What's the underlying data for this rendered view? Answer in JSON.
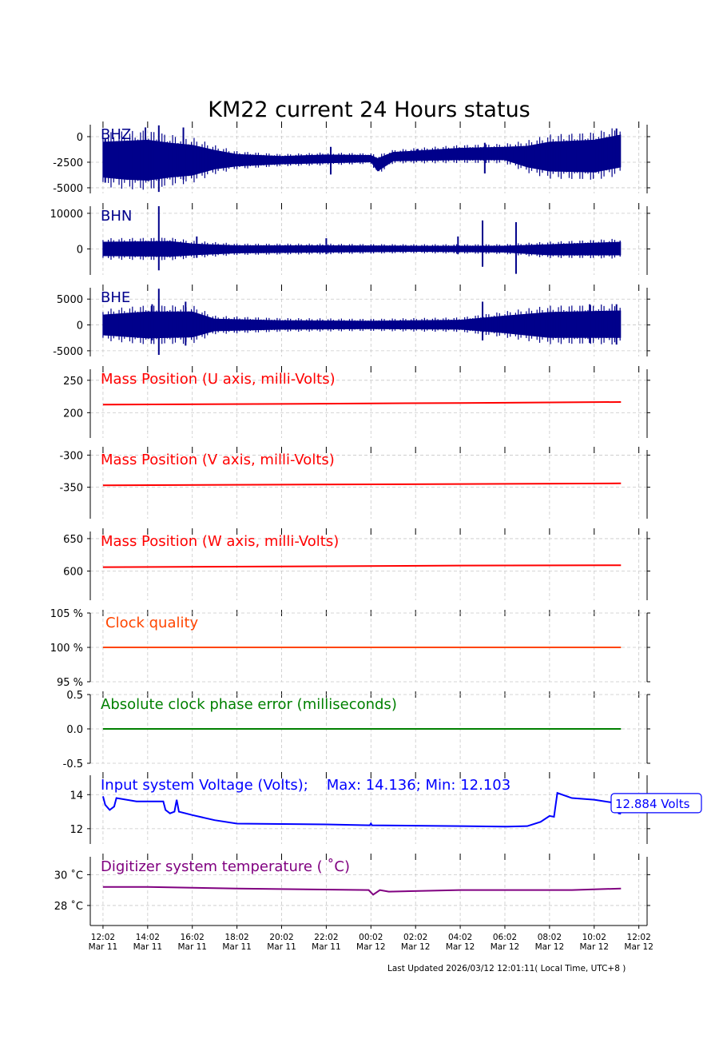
{
  "chart_data": {
    "type": "line",
    "title": "KM22 current 24 Hours status",
    "footer": "Last Updated 2026/03/12 12:01:11( Local Time, UTC+8 )",
    "x_unit": "hours since 12:02 Mar 11",
    "xlim": [
      -0.57,
      24.37
    ],
    "x_ticks": [
      {
        "h": 0,
        "t1": "12:02",
        "t2": "Mar 11"
      },
      {
        "h": 2,
        "t1": "14:02",
        "t2": "Mar 11"
      },
      {
        "h": 4,
        "t1": "16:02",
        "t2": "Mar 11"
      },
      {
        "h": 6,
        "t1": "18:02",
        "t2": "Mar 11"
      },
      {
        "h": 8,
        "t1": "20:02",
        "t2": "Mar 11"
      },
      {
        "h": 10,
        "t1": "22:02",
        "t2": "Mar 11"
      },
      {
        "h": 12,
        "t1": "00:02",
        "t2": "Mar 12"
      },
      {
        "h": 14,
        "t1": "02:02",
        "t2": "Mar 12"
      },
      {
        "h": 16,
        "t1": "04:02",
        "t2": "Mar 12"
      },
      {
        "h": 18,
        "t1": "06:02",
        "t2": "Mar 12"
      },
      {
        "h": 20,
        "t1": "08:02",
        "t2": "Mar 12"
      },
      {
        "h": 22,
        "t1": "10:02",
        "t2": "Mar 12"
      },
      {
        "h": 24,
        "t1": "12:02",
        "t2": "Mar 12"
      }
    ],
    "grid": true,
    "panels": [
      {
        "name": "BHZ",
        "label": "BHZ",
        "color": "#00008b",
        "kind": "envelope",
        "ylim": [
          -5550,
          1170
        ],
        "yticks": [
          {
            "v": 0,
            "t": "0"
          },
          {
            "v": -2500,
            "t": "-2500"
          },
          {
            "v": -5000,
            "t": "-5000"
          }
        ],
        "envelope": [
          [
            0,
            -4000,
            -500
          ],
          [
            1,
            -4200,
            -400
          ],
          [
            2,
            -4300,
            -300
          ],
          [
            3,
            -4000,
            -600
          ],
          [
            4,
            -3800,
            -800
          ],
          [
            5,
            -3200,
            -1300
          ],
          [
            6,
            -2900,
            -1700
          ],
          [
            8,
            -2700,
            -1900
          ],
          [
            10,
            -2600,
            -1750
          ],
          [
            12,
            -2500,
            -1800
          ],
          [
            12.3,
            -3400,
            -2100
          ],
          [
            13,
            -2400,
            -1500
          ],
          [
            16,
            -2300,
            -1100
          ],
          [
            18,
            -2300,
            -1000
          ],
          [
            19,
            -3000,
            -900
          ],
          [
            20,
            -3400,
            -500
          ],
          [
            22,
            -3500,
            -300
          ],
          [
            23.2,
            -3000,
            200
          ]
        ],
        "spikes": [
          [
            0.1,
            -4500,
            -200
          ],
          [
            2.5,
            -5400,
            1100
          ],
          [
            1.9,
            -4000,
            900
          ],
          [
            3.6,
            -4200,
            900
          ],
          [
            10.2,
            -3700,
            -1000
          ],
          [
            14.1,
            -2300,
            -1200
          ],
          [
            17.1,
            -3600,
            -600
          ],
          [
            23,
            -3000,
            800
          ]
        ]
      },
      {
        "name": "BHN",
        "label": "BHN",
        "color": "#00008b",
        "kind": "envelope",
        "ylim": [
          -7300,
          12000
        ],
        "yticks": [
          {
            "v": 10000,
            "t": "10000"
          },
          {
            "v": 0,
            "t": "0"
          }
        ],
        "envelope": [
          [
            0,
            -2000,
            2000
          ],
          [
            3,
            -2200,
            2200
          ],
          [
            4,
            -1800,
            1500
          ],
          [
            6,
            -1200,
            1000
          ],
          [
            10,
            -1000,
            1000
          ],
          [
            14,
            -800,
            900
          ],
          [
            18,
            -1000,
            900
          ],
          [
            20,
            -1800,
            1300
          ],
          [
            23.2,
            -1800,
            2000
          ]
        ],
        "spikes": [
          [
            2.5,
            -6000,
            12000
          ],
          [
            4.2,
            -2500,
            3500
          ],
          [
            10,
            -1500,
            3000
          ],
          [
            15.9,
            -1500,
            3500
          ],
          [
            17,
            -5000,
            8000
          ],
          [
            18.5,
            -7000,
            7500
          ]
        ]
      },
      {
        "name": "BHE",
        "label": "BHE",
        "color": "#00008b",
        "kind": "envelope",
        "ylim": [
          -6100,
          7200
        ],
        "yticks": [
          {
            "v": 5000,
            "t": "5000"
          },
          {
            "v": 0,
            "t": "0"
          },
          {
            "v": -5000,
            "t": "-5000"
          }
        ],
        "envelope": [
          [
            0,
            -2000,
            2000
          ],
          [
            2,
            -2600,
            2600
          ],
          [
            4,
            -2400,
            2600
          ],
          [
            5,
            -1200,
            1200
          ],
          [
            8,
            -900,
            900
          ],
          [
            12,
            -800,
            800
          ],
          [
            16,
            -900,
            1000
          ],
          [
            18,
            -1600,
            1800
          ],
          [
            20,
            -2500,
            2500
          ],
          [
            23.2,
            -2500,
            2800
          ]
        ],
        "spikes": [
          [
            2.5,
            -5800,
            7000
          ],
          [
            3.7,
            -4000,
            4500
          ],
          [
            2.2,
            -3000,
            4000
          ],
          [
            17,
            -3000,
            4500
          ],
          [
            21.8,
            -3500,
            4000
          ],
          [
            23,
            -3800,
            4000
          ]
        ]
      },
      {
        "name": "mass-u",
        "label": "Mass Position (U axis, milli-Volts)",
        "color": "#ff0000",
        "kind": "line",
        "ylim": [
          161,
          267
        ],
        "yticks": [
          {
            "v": 250,
            "t": "250"
          },
          {
            "v": 200,
            "t": "200"
          }
        ],
        "points": [
          [
            0,
            212.5
          ],
          [
            8,
            213.5
          ],
          [
            16,
            215
          ],
          [
            23.2,
            216.5
          ]
        ]
      },
      {
        "name": "mass-v",
        "label": "Mass Position (V axis, milli-Volts)",
        "color": "#ff0000",
        "kind": "line",
        "ylim": [
          -399,
          -292
        ],
        "yticks": [
          {
            "v": -300,
            "t": "-300"
          },
          {
            "v": -350,
            "t": "-350"
          }
        ],
        "points": [
          [
            0,
            -347
          ],
          [
            8,
            -346
          ],
          [
            16,
            -345
          ],
          [
            23.2,
            -344
          ]
        ]
      },
      {
        "name": "mass-w",
        "label": "Mass Position (W axis, milli-Volts)",
        "color": "#ff0000",
        "kind": "line",
        "ylim": [
          555,
          661
        ],
        "yticks": [
          {
            "v": 650,
            "t": "650"
          },
          {
            "v": 600,
            "t": "600"
          }
        ],
        "points": [
          [
            0,
            606
          ],
          [
            8,
            607
          ],
          [
            16,
            608.5
          ],
          [
            23.2,
            609
          ]
        ]
      },
      {
        "name": "clock-quality",
        "label": "Clock quality",
        "color": "#ff4500",
        "kind": "line",
        "ylim": [
          95,
          105
        ],
        "yticks": [
          {
            "v": 105,
            "t": "105 %"
          },
          {
            "v": 100,
            "t": "100 %"
          },
          {
            "v": 95,
            "t": "95 %"
          }
        ],
        "points": [
          [
            0,
            100
          ],
          [
            23.2,
            100
          ]
        ]
      },
      {
        "name": "clock-phase-error",
        "label": "Absolute clock phase error (milliseconds)",
        "color": "#008000",
        "kind": "line",
        "ylim": [
          -0.5,
          0.5
        ],
        "yticks": [
          {
            "v": 0.5,
            "t": "0.5"
          },
          {
            "v": 0,
            "t": "0.0"
          },
          {
            "v": -0.5,
            "t": "-0.5"
          }
        ],
        "points": [
          [
            0,
            0
          ],
          [
            23.2,
            0
          ]
        ]
      },
      {
        "name": "input-voltage",
        "label": "Input system Voltage (Volts);    Max: 14.136; Min: 12.103",
        "color": "#0000ff",
        "kind": "line",
        "ylim": [
          11.1,
          15.14
        ],
        "yticks": [
          {
            "v": 14,
            "t": "14"
          },
          {
            "v": 12,
            "t": "12"
          }
        ],
        "annotation": "12.884 Volts",
        "points": [
          [
            0,
            13.9
          ],
          [
            0.1,
            13.4
          ],
          [
            0.3,
            13.1
          ],
          [
            0.5,
            13.3
          ],
          [
            0.6,
            13.8
          ],
          [
            1.5,
            13.6
          ],
          [
            2.7,
            13.6
          ],
          [
            2.8,
            13.1
          ],
          [
            3.0,
            12.9
          ],
          [
            3.2,
            13.0
          ],
          [
            3.3,
            13.7
          ],
          [
            3.4,
            13.0
          ],
          [
            4,
            12.8
          ],
          [
            5,
            12.5
          ],
          [
            6,
            12.3
          ],
          [
            10,
            12.25
          ],
          [
            11.95,
            12.2
          ],
          [
            12,
            12.3
          ],
          [
            12.05,
            12.2
          ],
          [
            16,
            12.15
          ],
          [
            18,
            12.12
          ],
          [
            19,
            12.15
          ],
          [
            19.6,
            12.4
          ],
          [
            20,
            12.75
          ],
          [
            20.2,
            12.7
          ],
          [
            20.35,
            14.1
          ],
          [
            21,
            13.8
          ],
          [
            22,
            13.7
          ],
          [
            23,
            13.5
          ],
          [
            23.1,
            12.9
          ],
          [
            23.2,
            12.88
          ]
        ]
      },
      {
        "name": "temperature",
        "label": "Digitizer system temperature ( ˚C)",
        "color": "#800080",
        "kind": "line",
        "ylim": [
          26.7,
          31.16
        ],
        "yticks": [
          {
            "v": 30,
            "t": "30 ˚C"
          },
          {
            "v": 28,
            "t": "28 ˚C"
          }
        ],
        "points": [
          [
            0,
            29.2
          ],
          [
            2,
            29.2
          ],
          [
            6,
            29.1
          ],
          [
            11.9,
            29.0
          ],
          [
            12.1,
            28.7
          ],
          [
            12.4,
            29.0
          ],
          [
            12.8,
            28.9
          ],
          [
            16,
            29.0
          ],
          [
            21,
            29.0
          ],
          [
            23.2,
            29.1
          ]
        ]
      }
    ]
  }
}
